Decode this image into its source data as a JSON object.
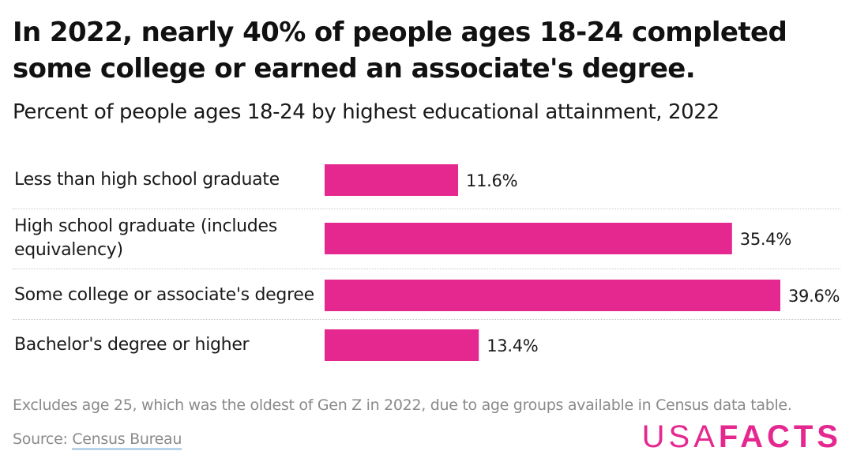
{
  "title": "In 2022, nearly 40% of people ages 18-24 completed some college or earned an associate's degree.",
  "subtitle": "Percent of people ages 18-24 by highest educational attainment, 2022",
  "footnote": "Excludes age 25, which was the oldest of Gen Z in 2022, due to age groups available in Census data table.",
  "source": {
    "prefix": "Source: ",
    "link_text": "Census Bureau"
  },
  "logo": {
    "part1": "USA",
    "part2": "FACTS"
  },
  "colors": {
    "bar": "#e5288f",
    "logo": "#e5288f",
    "text": "#1a1a1a",
    "muted": "#8a8a8a"
  },
  "chart_data": {
    "type": "bar",
    "orientation": "horizontal",
    "categories": [
      "Less than high school graduate",
      "High school graduate (includes equivalency)",
      "Some college or associate's degree",
      "Bachelor's degree or higher"
    ],
    "values": [
      11.6,
      35.4,
      39.6,
      13.4
    ],
    "value_labels": [
      "11.6%",
      "35.4%",
      "39.6%",
      "13.4%"
    ],
    "title": "In 2022, nearly 40% of people ages 18-24 completed some college or earned an associate's degree.",
    "subtitle": "Percent of people ages 18-24 by highest educational attainment, 2022",
    "xlabel": "",
    "ylabel": "",
    "xlim": [
      0,
      40
    ],
    "grid": false,
    "legend": "none"
  }
}
